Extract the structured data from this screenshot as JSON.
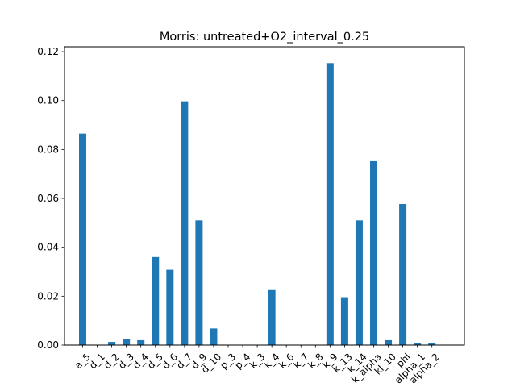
{
  "chart_data": {
    "type": "bar",
    "title": "Morris: untreated+O2_interval_0.25",
    "xlabel": "",
    "ylabel": "",
    "ylim": [
      0,
      0.122
    ],
    "yticks": [
      "0.00",
      "0.02",
      "0.04",
      "0.06",
      "0.08",
      "0.10",
      "0.12"
    ],
    "ytick_values": [
      0,
      0.02,
      0.04,
      0.06,
      0.08,
      0.1,
      0.12
    ],
    "grid": false,
    "bar_color": "#1f77b4",
    "categories": [
      "a_5",
      "d_1",
      "d_2",
      "d_3",
      "d_4",
      "d_5",
      "d_6",
      "d_7",
      "d_9",
      "d_10",
      "p_3",
      "p_4",
      "k_3",
      "k_4",
      "k_6",
      "k_7",
      "k_8",
      "k_9",
      "k_13",
      "k_14",
      "k_alpha",
      "kl_10",
      "phi",
      "alpha_1",
      "alpha_2"
    ],
    "values": [
      0.0865,
      0.0,
      0.0013,
      0.0023,
      0.002,
      0.036,
      0.0308,
      0.0997,
      0.051,
      0.0068,
      0.0,
      0.0,
      0.0,
      0.0225,
      0.0,
      0.0,
      0.0,
      0.1153,
      0.0196,
      0.051,
      0.0752,
      0.002,
      0.0577,
      0.0008,
      0.0009
    ]
  }
}
